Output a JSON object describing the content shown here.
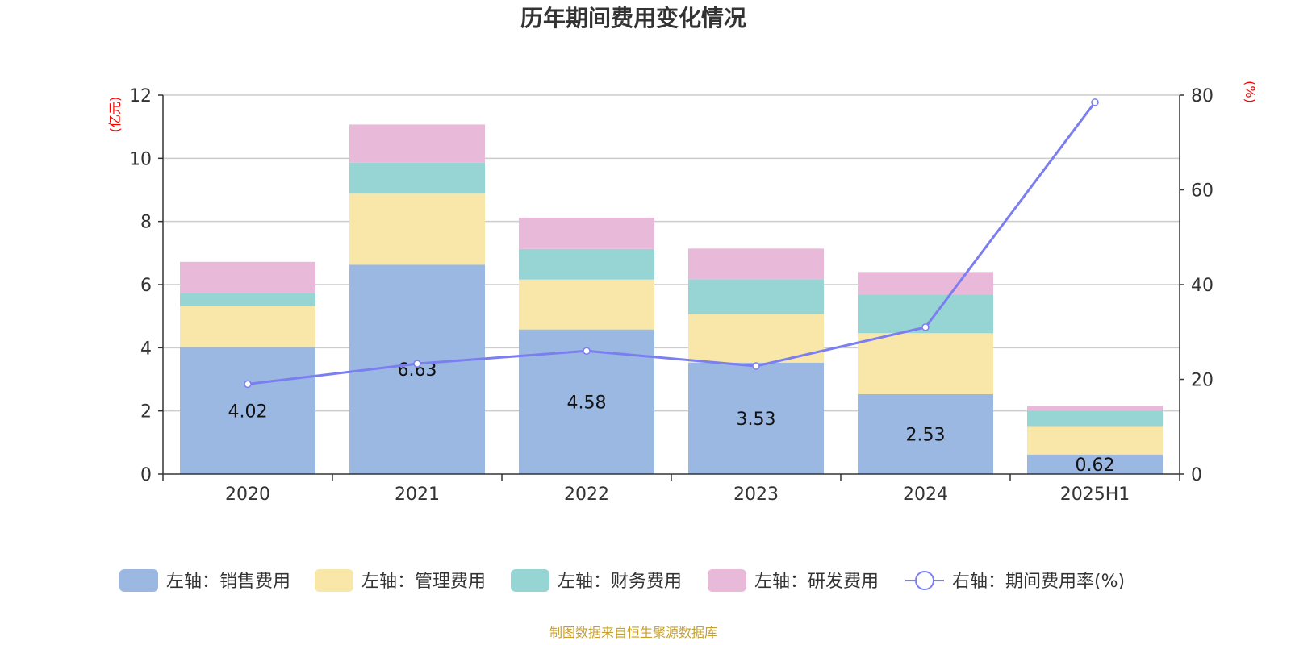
{
  "chart_data": {
    "type": "bar",
    "stacked": true,
    "title": "历年期间费用变化情况",
    "categories": [
      "2020",
      "2021",
      "2022",
      "2023",
      "2024",
      "2025H1"
    ],
    "left_axis": {
      "unit": "(亿元)",
      "ylim": [
        0,
        12
      ],
      "ticks": [
        "0",
        "2",
        "4",
        "6",
        "8",
        "10",
        "12"
      ]
    },
    "right_axis": {
      "unit": "(%)",
      "ylim": [
        0,
        80
      ],
      "ticks": [
        "0",
        "20",
        "40",
        "60",
        "80"
      ]
    },
    "series": [
      {
        "name": "左轴：销售费用",
        "axis": "left",
        "color": "#9bb8e3",
        "values": [
          4.02,
          6.63,
          4.58,
          3.53,
          2.53,
          0.62
        ]
      },
      {
        "name": "左轴：管理费用",
        "axis": "left",
        "color": "#f8e7a8",
        "values": [
          1.3,
          2.25,
          1.58,
          1.53,
          1.93,
          0.9
        ]
      },
      {
        "name": "左轴：财务费用",
        "axis": "left",
        "color": "#97d4d4",
        "values": [
          0.42,
          0.98,
          0.97,
          1.11,
          1.23,
          0.48
        ]
      },
      {
        "name": "左轴：研发费用",
        "axis": "left",
        "color": "#e8b9d8",
        "values": [
          0.98,
          1.21,
          0.99,
          0.97,
          0.71,
          0.16
        ]
      },
      {
        "name": "右轴：期间费用率(%)",
        "axis": "right",
        "type": "line",
        "color": "#7b7ef0",
        "values": [
          19.0,
          23.3,
          26.0,
          22.8,
          31.0,
          78.5
        ]
      }
    ],
    "data_labels": [
      "4.02",
      "6.63",
      "4.58",
      "3.53",
      "2.53",
      "0.62"
    ],
    "legend_position": "bottom",
    "grid": true
  },
  "source": "制图数据来自恒生聚源数据库"
}
